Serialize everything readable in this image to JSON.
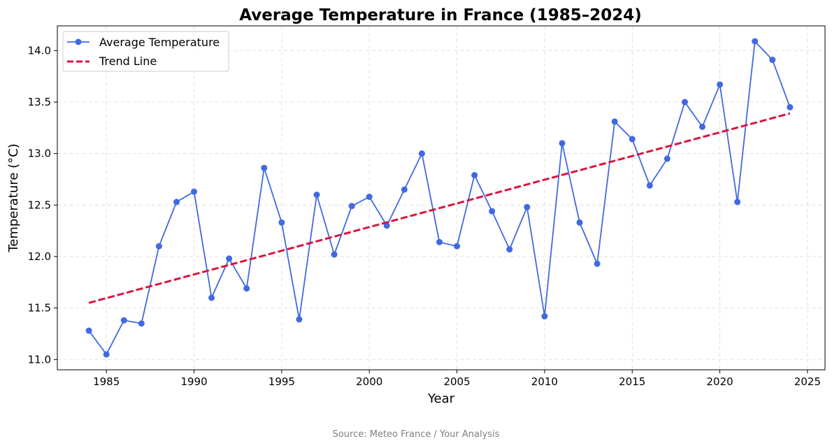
{
  "chart_data": {
    "type": "line",
    "title": "Average Temperature in France (1985–2024)",
    "xlabel": "Year",
    "ylabel": "Temperature (°C)",
    "source": "Source: Meteo France / Your Analysis",
    "xlim": [
      1982.2,
      2026.0
    ],
    "ylim": [
      10.9,
      14.24
    ],
    "xticks": [
      1985,
      1990,
      1995,
      2000,
      2005,
      2010,
      2015,
      2020,
      2025
    ],
    "yticks": [
      11.0,
      11.5,
      12.0,
      12.5,
      13.0,
      13.5,
      14.0
    ],
    "grid": true,
    "legend_position": "upper-left",
    "series": [
      {
        "name": "Average Temperature",
        "color": "#4169e1",
        "style": "line-marker",
        "x": [
          1984,
          1985,
          1986,
          1987,
          1988,
          1989,
          1990,
          1991,
          1992,
          1993,
          1994,
          1995,
          1996,
          1997,
          1998,
          1999,
          2000,
          2001,
          2002,
          2003,
          2004,
          2005,
          2006,
          2007,
          2008,
          2009,
          2010,
          2011,
          2012,
          2013,
          2014,
          2015,
          2016,
          2017,
          2018,
          2019,
          2020,
          2021,
          2022,
          2023,
          2024
        ],
        "y": [
          11.28,
          11.05,
          11.38,
          11.35,
          12.1,
          12.53,
          12.63,
          11.6,
          11.98,
          11.69,
          12.86,
          12.33,
          11.39,
          12.6,
          12.02,
          12.49,
          12.58,
          12.3,
          12.65,
          13.0,
          12.14,
          12.1,
          12.79,
          12.44,
          12.07,
          12.48,
          11.42,
          13.1,
          12.33,
          11.93,
          13.31,
          13.14,
          12.69,
          12.95,
          13.5,
          13.26,
          13.67,
          12.53,
          14.09,
          13.91,
          13.45
        ]
      },
      {
        "name": "Trend Line",
        "color": "#dc143c",
        "style": "dashed",
        "x": [
          1984,
          2024
        ],
        "y": [
          11.55,
          13.39
        ]
      }
    ]
  }
}
